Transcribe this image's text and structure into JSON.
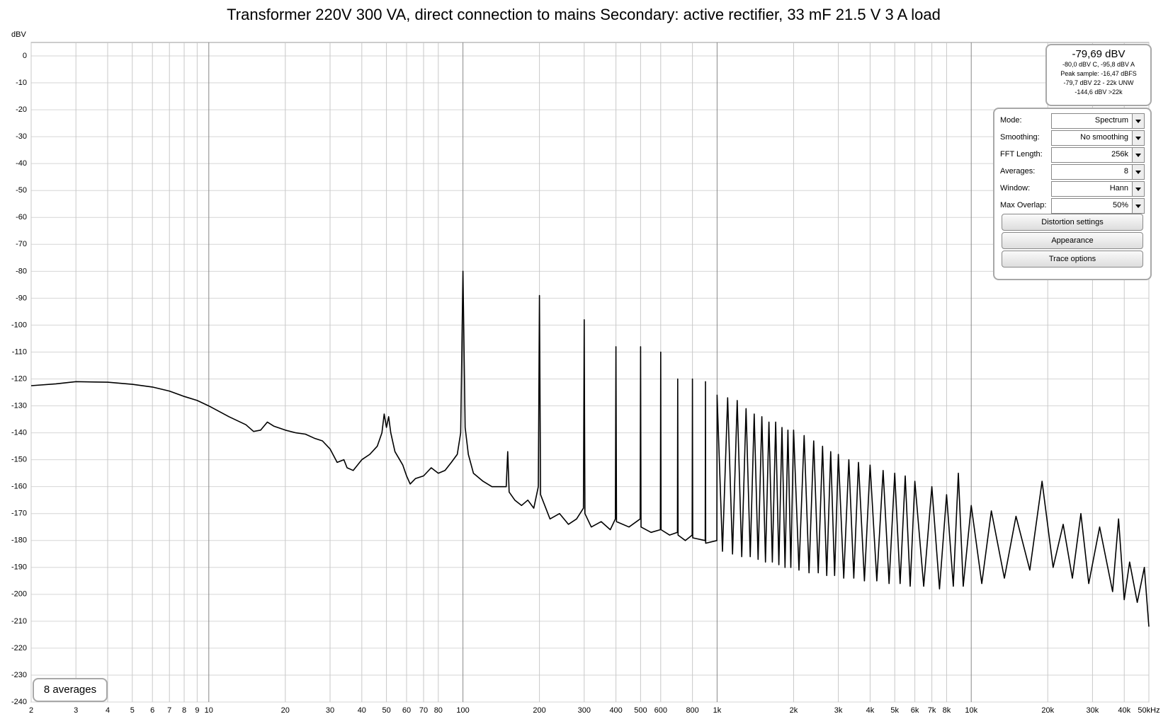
{
  "chart_data": {
    "type": "line",
    "title": "Transformer 220V 300 VA, direct connection to mains Secondary: active rectifier, 33 mF 21.5 V 3 A load",
    "y_label": "dBV",
    "xscale": "log",
    "grid": true,
    "color": "#000000",
    "xlim": [
      2,
      50000
    ],
    "ylim": [
      -240,
      5
    ],
    "xticks": [
      2,
      3,
      4,
      5,
      6,
      7,
      8,
      9,
      10,
      20,
      30,
      40,
      50,
      60,
      70,
      80,
      100,
      200,
      300,
      400,
      500,
      600,
      800,
      {
        "value": 1000,
        "label": "1k"
      },
      {
        "value": 2000,
        "label": "2k"
      },
      {
        "value": 3000,
        "label": "3k"
      },
      {
        "value": 4000,
        "label": "4k"
      },
      {
        "value": 5000,
        "label": "5k"
      },
      {
        "value": 6000,
        "label": "6k"
      },
      {
        "value": 7000,
        "label": "7k"
      },
      {
        "value": 8000,
        "label": "8k"
      },
      {
        "value": 10000,
        "label": "10k"
      },
      {
        "value": 20000,
        "label": "20k"
      },
      {
        "value": 30000,
        "label": "30k"
      },
      {
        "value": 40000,
        "label": "40k"
      },
      {
        "value": 50000,
        "label": "50kHz"
      }
    ],
    "yticks": [
      0,
      -10,
      -20,
      -30,
      -40,
      -50,
      -60,
      -70,
      -80,
      -90,
      -100,
      -110,
      -120,
      -130,
      -140,
      -150,
      -160,
      -170,
      -180,
      -190,
      -200,
      -210,
      -220,
      -230,
      -240
    ],
    "x": [
      2,
      2.5,
      3,
      4,
      5,
      6,
      7,
      8,
      9,
      10,
      12,
      14,
      15,
      16,
      17,
      18,
      20,
      22,
      24,
      26,
      28,
      30,
      32,
      34,
      35,
      37,
      40,
      43,
      46,
      48,
      49,
      50,
      51,
      52,
      54,
      58,
      60,
      62,
      65,
      70,
      75,
      80,
      85,
      90,
      95,
      98,
      100,
      102,
      105,
      110,
      120,
      130,
      140,
      148,
      150,
      152,
      160,
      170,
      180,
      190,
      198,
      200,
      202,
      220,
      240,
      260,
      280,
      298,
      300,
      302,
      320,
      350,
      380,
      398,
      400,
      402,
      450,
      498,
      500,
      502,
      550,
      598,
      600,
      602,
      650,
      698,
      700,
      702,
      750,
      798,
      800,
      802,
      898,
      900,
      902,
      998,
      1000,
      1050,
      1100,
      1150,
      1200,
      1250,
      1300,
      1350,
      1400,
      1450,
      1500,
      1550,
      1600,
      1650,
      1700,
      1750,
      1800,
      1850,
      1900,
      1950,
      2000,
      2100,
      2200,
      2300,
      2400,
      2500,
      2600,
      2700,
      2800,
      2900,
      3000,
      3150,
      3300,
      3450,
      3600,
      3800,
      4000,
      4250,
      4500,
      4750,
      5000,
      5250,
      5500,
      5750,
      6000,
      6500,
      7000,
      7500,
      8000,
      8500,
      8900,
      9300,
      10000,
      11000,
      12000,
      13500,
      15000,
      17000,
      19000,
      21000,
      23000,
      25000,
      27000,
      29000,
      32000,
      36000,
      38000,
      40000,
      42000,
      45000,
      48000,
      50000
    ],
    "series": [
      {
        "values": [
          -122.5,
          -121.8,
          -121,
          -121.2,
          -122,
          -123,
          -124.5,
          -126.5,
          -128,
          -130,
          -134,
          -137,
          -139.5,
          -139,
          -136,
          -137.5,
          -139,
          -140,
          -140.5,
          -142,
          -143,
          -146,
          -151,
          -150,
          -153,
          -154,
          -150,
          -148,
          -145,
          -140,
          -133,
          -138,
          -134,
          -140,
          -147,
          -152,
          -156,
          -159,
          -157,
          -156,
          -153,
          -155,
          -154,
          -151,
          -148,
          -140,
          -80,
          -138,
          -148,
          -155,
          -158,
          -160,
          -160,
          -160,
          -147,
          -162,
          -165,
          -167,
          -165,
          -168,
          -160,
          -89,
          -163,
          -172,
          -170,
          -174,
          -172,
          -168,
          -98,
          -170,
          -175,
          -173,
          -176,
          -172,
          -108,
          -173,
          -175,
          -172,
          -108,
          -175,
          -177,
          -176,
          -110,
          -176,
          -178,
          -177,
          -120,
          -178,
          -180,
          -178,
          -120,
          -179,
          -180,
          -121,
          -181,
          -180,
          -126,
          -184,
          -127,
          -185,
          -128,
          -186,
          -131,
          -186,
          -133,
          -187,
          -134,
          -188,
          -136,
          -188,
          -136,
          -189,
          -138,
          -190,
          -139,
          -190,
          -139,
          -191,
          -141,
          -192,
          -143,
          -192,
          -145,
          -193,
          -147,
          -193,
          -148,
          -194,
          -150,
          -194,
          -151,
          -195,
          -152,
          -195,
          -154,
          -196,
          -155,
          -196,
          -156,
          -197,
          -158,
          -197,
          -160,
          -198,
          -163,
          -197,
          -155,
          -197,
          -167,
          -196,
          -169,
          -194,
          -171,
          -191,
          -158,
          -190,
          -174,
          -194,
          -170,
          -196,
          -175,
          -199,
          -172,
          -202,
          -188,
          -203,
          -190,
          -212
        ]
      }
    ]
  },
  "info_box": {
    "main": "-79,69 dBV",
    "lines": [
      "-80,0 dBV C, -95,8 dBV A",
      "Peak sample: -16,47 dBFS",
      "-79,7 dBV 22 - 22k UNW",
      "-144,6 dBV >22k"
    ]
  },
  "controls": {
    "rows": [
      [
        "Mode:",
        "Spectrum"
      ],
      [
        "Smoothing:",
        "No  smoothing"
      ],
      [
        "FFT Length:",
        "256k"
      ],
      [
        "Averages:",
        "8"
      ],
      [
        "Window:",
        "Hann"
      ],
      [
        "Max Overlap:",
        "50%"
      ]
    ],
    "buttons": [
      "Distortion settings",
      "Appearance",
      "Trace options"
    ]
  },
  "status": "8 averages"
}
